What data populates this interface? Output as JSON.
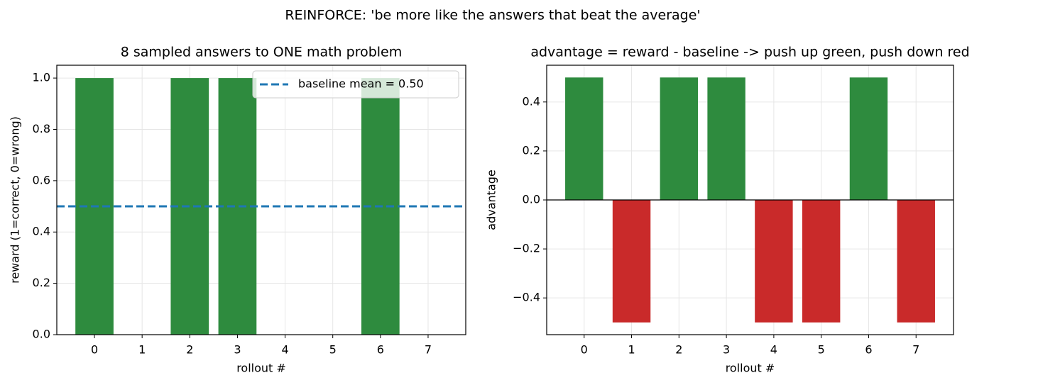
{
  "title": "REINFORCE: 'be more like the answers that beat the average'",
  "chart_data": [
    {
      "type": "bar",
      "title": "8 sampled answers to ONE math problem",
      "xlabel": "rollout #",
      "ylabel": "reward (1=correct, 0=wrong)",
      "categories": [
        "0",
        "1",
        "2",
        "3",
        "4",
        "5",
        "6",
        "7"
      ],
      "values": [
        1,
        0,
        1,
        1,
        0,
        0,
        1,
        0
      ],
      "colors": [
        "#2e8b3e",
        "#2e8b3e",
        "#2e8b3e",
        "#2e8b3e",
        "#2e8b3e",
        "#2e8b3e",
        "#2e8b3e",
        "#2e8b3e"
      ],
      "ylim": [
        0,
        1.05
      ],
      "yticks": [
        {
          "value": 0,
          "label": "0.0"
        },
        {
          "value": 0.2,
          "label": "0.2"
        },
        {
          "value": 0.4,
          "label": "0.4"
        },
        {
          "value": 0.6,
          "label": "0.6"
        },
        {
          "value": 0.8,
          "label": "0.8"
        },
        {
          "value": 1,
          "label": "1.0"
        }
      ],
      "grid": true,
      "hlines": [
        {
          "y": 0.5,
          "label": "baseline mean = 0.50",
          "color": "#1f77b4",
          "style": "dashed"
        }
      ],
      "legend": "upper right"
    },
    {
      "type": "bar",
      "title": "advantage = reward - baseline  ->  push up green, push down red",
      "xlabel": "rollout #",
      "ylabel": "advantage",
      "categories": [
        "0",
        "1",
        "2",
        "3",
        "4",
        "5",
        "6",
        "7"
      ],
      "values": [
        0.5,
        -0.5,
        0.5,
        0.5,
        -0.5,
        -0.5,
        0.5,
        -0.5
      ],
      "colors": [
        "#2e8b3e",
        "#c92a2a",
        "#2e8b3e",
        "#2e8b3e",
        "#c92a2a",
        "#c92a2a",
        "#2e8b3e",
        "#c92a2a"
      ],
      "ylim": [
        -0.55,
        0.55
      ],
      "yticks": [
        {
          "value": -0.4,
          "label": "−0.4"
        },
        {
          "value": -0.2,
          "label": "−0.2"
        },
        {
          "value": 0,
          "label": "0.0"
        },
        {
          "value": 0.2,
          "label": "0.2"
        },
        {
          "value": 0.4,
          "label": "0.4"
        }
      ],
      "grid": true,
      "hlines": [
        {
          "y": 0,
          "color": "#000000",
          "style": "solid"
        }
      ]
    }
  ]
}
